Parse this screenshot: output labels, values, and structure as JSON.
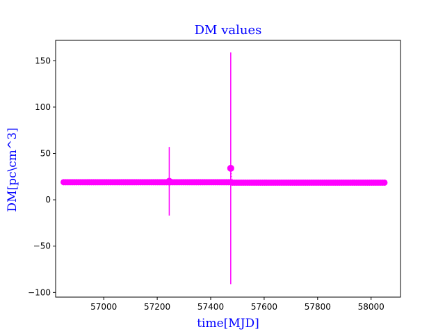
{
  "chart_data": {
    "type": "scatter",
    "title": "DM values",
    "xlabel": "time[MJD]",
    "ylabel": "DM[pc\\cm^3]",
    "xlim": [
      56820,
      58110
    ],
    "ylim": [
      -105,
      172
    ],
    "xticks": [
      56800,
      57000,
      57200,
      57400,
      57600,
      57800,
      58000
    ],
    "yticks": [
      -100,
      -50,
      0,
      50,
      100,
      150
    ],
    "grid": false,
    "color": "#ff00ff",
    "baseline_series": {
      "x_start": 56850,
      "x_end": 58055,
      "x_step": 8,
      "y_before": 19,
      "y_after": 18.5,
      "y_switch_x": 57480
    },
    "outliers": [
      {
        "x": 57245,
        "y": 20,
        "yerr_low": -17,
        "yerr_high": 57
      },
      {
        "x": 57475,
        "y": 34,
        "yerr_low": -91,
        "yerr_high": 159
      }
    ]
  }
}
